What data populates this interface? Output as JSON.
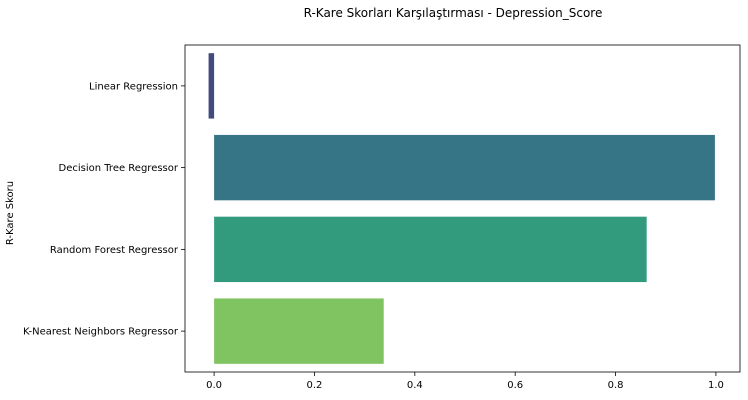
{
  "chart_data": {
    "type": "bar",
    "orientation": "horizontal",
    "title": "R-Kare Skorları Karşılaştırması - Depression_Score",
    "xlabel": "",
    "ylabel": "R-Kare Skoru",
    "categories": [
      "Linear Regression",
      "Decision Tree Regressor",
      "Random Forest Regressor",
      "K-Nearest Neighbors Regressor"
    ],
    "values": [
      -0.011,
      0.998,
      0.862,
      0.338
    ],
    "colors": [
      "#424B7E",
      "#367585",
      "#339B7D",
      "#80C462"
    ],
    "xlim": [
      -0.058,
      1.048
    ],
    "x_ticks": [
      0.0,
      0.2,
      0.4,
      0.6,
      0.8,
      1.0
    ],
    "x_tick_labels": [
      "0.0",
      "0.2",
      "0.4",
      "0.6",
      "0.8",
      "1.0"
    ],
    "grid": false,
    "legend": "none"
  }
}
